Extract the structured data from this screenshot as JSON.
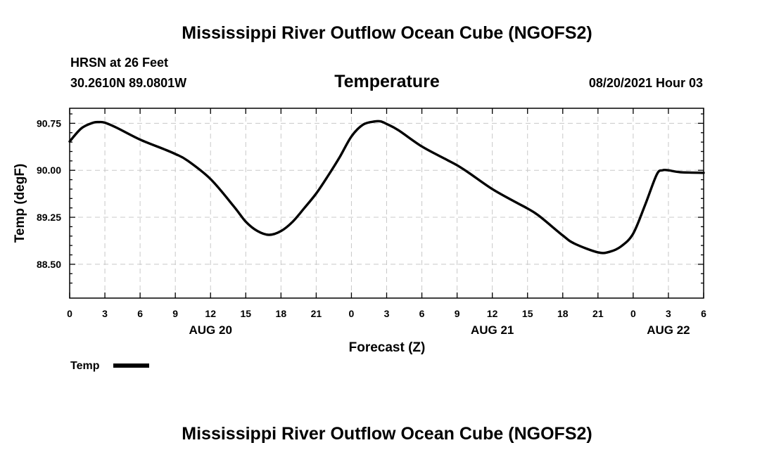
{
  "header": {
    "title": "Mississippi River Outflow Ocean Cube (NGOFS2)",
    "station": "HRSN at 26 Feet",
    "coordinates": "30.2610N  89.0801W",
    "timestamp": "08/20/2021 Hour 03"
  },
  "footer": {
    "title": "Mississippi River Outflow Ocean Cube (NGOFS2)"
  },
  "chart_data": {
    "type": "line",
    "title": "Temperature",
    "xlabel": "Forecast (Z)",
    "ylabel": "Temp (degF)",
    "xlim": [
      0,
      54
    ],
    "ylim": [
      87.96,
      90.99
    ],
    "grid": true,
    "x_ticks": [
      0,
      3,
      6,
      9,
      12,
      15,
      18,
      21,
      24,
      27,
      30,
      33,
      36,
      39,
      42,
      45,
      48,
      51,
      54
    ],
    "x_tick_labels": [
      "0",
      "3",
      "6",
      "9",
      "12",
      "15",
      "18",
      "21",
      "0",
      "3",
      "6",
      "9",
      "12",
      "15",
      "18",
      "21",
      "0",
      "3",
      "6"
    ],
    "y_ticks": [
      88.5,
      89.25,
      90.0,
      90.75
    ],
    "y_tick_labels": [
      "88.50",
      "89.25",
      "90.00",
      "90.75"
    ],
    "y_minor_ticks": [
      88.2,
      88.35,
      88.65,
      88.8,
      88.95,
      89.1,
      89.4,
      89.55,
      89.7,
      89.85,
      90.15,
      90.3,
      90.45,
      90.6,
      90.9
    ],
    "day_labels": [
      {
        "x": 12,
        "label": "AUG 20"
      },
      {
        "x": 36,
        "label": "AUG 21"
      },
      {
        "x": 51,
        "label": "AUG 22"
      }
    ],
    "legend": {
      "position": "bottom-left",
      "entries": [
        {
          "name": "Temp",
          "color": "#000000"
        }
      ]
    },
    "series": [
      {
        "name": "Temp",
        "x": [
          0,
          1,
          2,
          2.5,
          3,
          4,
          6,
          8,
          9,
          10,
          12,
          14,
          15,
          16,
          17,
          18,
          19,
          20,
          21,
          22,
          23,
          24,
          25,
          26,
          26.5,
          27,
          28,
          30,
          32,
          33,
          34,
          36,
          38,
          39,
          40,
          42,
          43,
          45,
          46,
          47,
          48,
          49,
          50,
          50.5,
          51,
          52,
          54
        ],
        "values": [
          90.46,
          90.67,
          90.76,
          90.77,
          90.76,
          90.68,
          90.49,
          90.34,
          90.26,
          90.16,
          89.86,
          89.42,
          89.18,
          89.03,
          88.97,
          89.03,
          89.18,
          89.4,
          89.63,
          89.91,
          90.21,
          90.54,
          90.73,
          90.78,
          90.78,
          90.74,
          90.64,
          90.38,
          90.18,
          90.08,
          89.96,
          89.7,
          89.49,
          89.39,
          89.27,
          88.96,
          88.83,
          88.69,
          88.7,
          88.79,
          88.99,
          89.44,
          89.93,
          90.0,
          90.0,
          89.97,
          89.96
        ]
      }
    ]
  }
}
